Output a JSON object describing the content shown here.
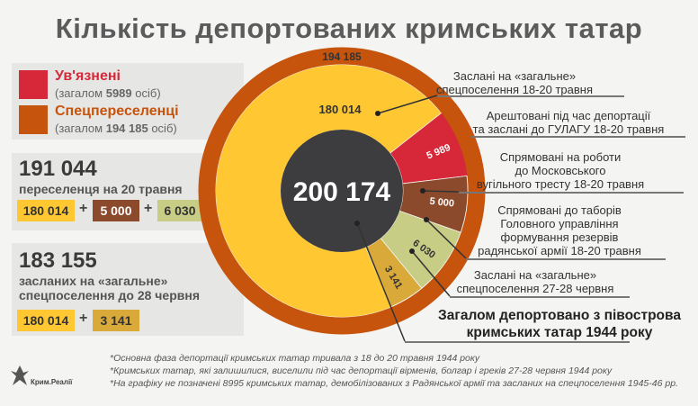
{
  "title": "Кількість депортованих кримських татар",
  "legend": {
    "prisoners": {
      "label": "Ув'язнені",
      "sub_prefix": "(загалом ",
      "sub_value": "5989",
      "sub_suffix": " осіб)",
      "color": "#d62838"
    },
    "settlers": {
      "label": "Спецпереселенці",
      "sub_prefix": "(загалом ",
      "sub_value": "194 185",
      "sub_suffix": " осіб)",
      "color": "#c6540d"
    }
  },
  "box1": {
    "number": "191 044",
    "caption": "переселенця на 20 травня",
    "v1": "180 014",
    "op1": "+",
    "v2": "5 000",
    "op2": "+",
    "v3": "6 030"
  },
  "box2": {
    "number": "183 155",
    "caption1": "засланих на «загальне»",
    "caption2": "спецпоселення до 28 червня",
    "v1": "180 014",
    "op1": "+",
    "v2": "3 141"
  },
  "colors": {
    "yellow": "#ffc832",
    "orange": "#c6540d",
    "red": "#d62838",
    "brown": "#8b4a2b",
    "green": "#c7cd85",
    "gold": "#d9a93a",
    "dark": "#3d3d40"
  },
  "chart_data": {
    "type": "pie",
    "total": 200174,
    "total_label": "200 174",
    "outer_ring_label": "194 185",
    "inner_label": "180 014",
    "slices": [
      {
        "name": "Заслані на «загальне» спецпоселення 18-20 травня",
        "value": 180014,
        "label": "180 014",
        "color": "#ffc832"
      },
      {
        "name": "Арештовані під час депортації та заслані до ГУЛАГУ 18-20 травня",
        "value": 5989,
        "label": "5 989",
        "color": "#d62838"
      },
      {
        "name": "Спрямовані на роботи до Московського вугільного тресту 18-20 травня",
        "value": 5000,
        "label": "5 000",
        "color": "#8b4a2b"
      },
      {
        "name": "Спрямовані до таборів Головного управління формування резервів радянської армії 18-20 травня",
        "value": 6030,
        "label": "6 030",
        "color": "#c7cd85"
      },
      {
        "name": "Заслані на «загальне» спецпоселення 27-28 червня",
        "value": 3141,
        "label": "3 141",
        "color": "#d9a93a"
      }
    ]
  },
  "annotations": {
    "a1": [
      "Заслані на «загальне»",
      "спецпоселення 18-20 травня"
    ],
    "a2": [
      "Арештовані під час депортації",
      "та заслані до ГУЛАГУ 18-20 травня"
    ],
    "a3": [
      "Спрямовані на роботи",
      "до Московського",
      "вугільного тресту 18-20 травня"
    ],
    "a4": [
      "Спрямовані до таборів",
      "Головного управління",
      "формування резервів",
      "радянської армії 18-20 травня"
    ],
    "a5": [
      "Заслані на «загальне»",
      "спецпоселення 27-28 червня"
    ],
    "total": [
      "Загалом депортовано з півострова",
      "кримських татар 1944 року"
    ]
  },
  "footnotes": [
    "*Основна фаза депортації кримських татар тривала з 18 до 20 травня 1944 року",
    "*Кримських татар, які залишилися, виселили під час депортації вірменів, болгар і греків 27-28 червня 1944 року",
    "*На графіку не позначені 8995 кримських татар, демобілізованих з Радянської армії та засланих на спецпоселення 1945-46 рр."
  ],
  "logo": {
    "name": "Крим.Реалії"
  }
}
